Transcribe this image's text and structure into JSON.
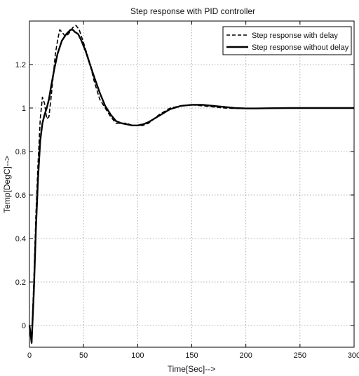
{
  "chart_data": {
    "type": "line",
    "title": "Step response with PID controller",
    "xlabel": "Time[Sec]-->",
    "ylabel": "Temp[DegC]-->",
    "xlim": [
      0,
      300
    ],
    "ylim": [
      -0.1,
      1.4
    ],
    "xticks": [
      0,
      50,
      100,
      150,
      200,
      250,
      300
    ],
    "yticks": [
      0,
      0.2,
      0.4,
      0.6,
      0.8,
      1,
      1.2
    ],
    "ytick_labels": [
      "0",
      "0.2",
      "0.4",
      "0.6",
      "0.8",
      "1",
      "1.2"
    ],
    "grid": true,
    "legend_position": "top-right",
    "series": [
      {
        "name": "Step response with delay",
        "style": "dashed",
        "color": "#000000",
        "x": [
          0,
          2,
          4,
          6,
          8,
          10,
          12,
          14,
          16,
          18,
          20,
          22,
          24,
          26,
          28,
          30,
          33,
          36,
          40,
          43,
          46,
          50,
          55,
          60,
          65,
          70,
          75,
          80,
          85,
          90,
          95,
          100,
          105,
          110,
          120,
          130,
          140,
          150,
          160,
          170,
          180,
          190,
          200,
          210,
          220,
          240,
          260,
          280,
          300
        ],
        "y": [
          0,
          -0.06,
          0.2,
          0.52,
          0.75,
          0.95,
          1.05,
          1.02,
          0.95,
          0.96,
          1.05,
          1.15,
          1.25,
          1.31,
          1.36,
          1.35,
          1.33,
          1.34,
          1.37,
          1.38,
          1.36,
          1.3,
          1.22,
          1.12,
          1.04,
          1.0,
          0.96,
          0.93,
          0.93,
          0.93,
          0.92,
          0.92,
          0.92,
          0.93,
          0.97,
          1.0,
          1.01,
          1.015,
          1.01,
          1.005,
          1.0,
          0.998,
          0.998,
          0.998,
          0.999,
          1.0,
          1.0,
          1.0,
          1.0
        ]
      },
      {
        "name": "Step response without  delay",
        "style": "solid",
        "color": "#000000",
        "x": [
          0,
          2,
          4,
          6,
          8,
          10,
          12,
          14,
          16,
          18,
          20,
          23,
          26,
          30,
          34,
          38,
          40,
          42,
          45,
          48,
          52,
          56,
          60,
          65,
          70,
          75,
          80,
          85,
          90,
          95,
          100,
          105,
          110,
          120,
          130,
          140,
          150,
          160,
          170,
          180,
          190,
          200,
          210,
          220,
          240,
          260,
          280,
          300
        ],
        "y": [
          0,
          -0.08,
          0.15,
          0.45,
          0.68,
          0.85,
          0.93,
          0.97,
          1.0,
          1.04,
          1.1,
          1.18,
          1.25,
          1.31,
          1.34,
          1.36,
          1.36,
          1.35,
          1.34,
          1.31,
          1.26,
          1.2,
          1.14,
          1.07,
          1.01,
          0.97,
          0.94,
          0.93,
          0.925,
          0.92,
          0.92,
          0.925,
          0.935,
          0.965,
          0.995,
          1.01,
          1.015,
          1.015,
          1.01,
          1.005,
          1.0,
          0.998,
          0.998,
          0.999,
          1.0,
          1.0,
          1.0,
          1.0
        ]
      }
    ]
  }
}
